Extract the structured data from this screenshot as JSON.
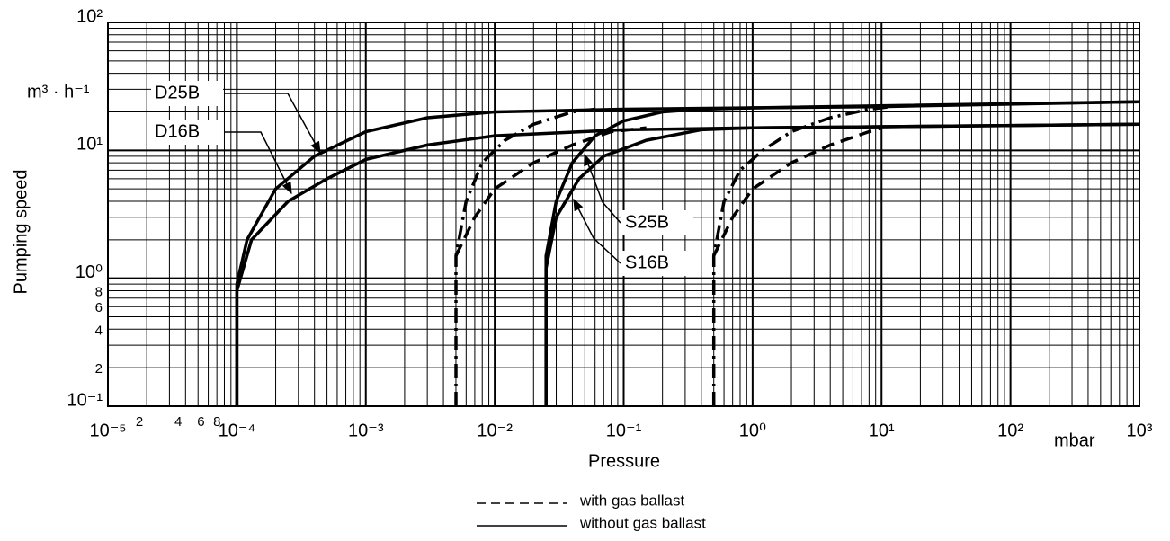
{
  "chart_data": {
    "type": "line",
    "xlabel": "Pressure",
    "ylabel": "Pumping speed",
    "x_unit": "mbar",
    "y_unit": "m³ · h⁻¹",
    "log_x": true,
    "log_y": true,
    "grid": true,
    "xlim": [
      1e-05,
      1000
    ],
    "ylim": [
      0.1,
      100
    ],
    "xticks": [
      {
        "value": 1e-05,
        "label": "10⁻⁵"
      },
      {
        "value": 2e-05,
        "label": "2"
      },
      {
        "value": 4e-05,
        "label": "4"
      },
      {
        "value": 6e-05,
        "label": "6"
      },
      {
        "value": 8e-05,
        "label": "8"
      },
      {
        "value": 0.0001,
        "label": "10⁻⁴"
      },
      {
        "value": 0.001,
        "label": "10⁻³"
      },
      {
        "value": 0.01,
        "label": "10⁻²"
      },
      {
        "value": 0.1,
        "label": "10⁻¹"
      },
      {
        "value": 1,
        "label": "10⁰"
      },
      {
        "value": 10,
        "label": "10¹"
      },
      {
        "value": 100,
        "label": "10²"
      },
      {
        "value": 1000,
        "label": "10³"
      }
    ],
    "yticks": [
      {
        "value": 0.1,
        "label": "10⁻¹"
      },
      {
        "value": 0.2,
        "label": "2"
      },
      {
        "value": 0.4,
        "label": "4"
      },
      {
        "value": 0.6,
        "label": "6"
      },
      {
        "value": 0.8,
        "label": "8"
      },
      {
        "value": 1,
        "label": "10⁰"
      },
      {
        "value": 10,
        "label": "10¹"
      },
      {
        "value": 100,
        "label": "10²"
      }
    ],
    "xgrid": [
      2e-05,
      3e-05,
      4e-05,
      5e-05,
      6e-05,
      7e-05,
      8e-05,
      9e-05,
      0.0001,
      0.0002,
      0.0003,
      0.0004,
      0.0005,
      0.0006,
      0.0007,
      0.0008,
      0.0009,
      0.001,
      0.002,
      0.003,
      0.004,
      0.005,
      0.006,
      0.007,
      0.008,
      0.009,
      0.01,
      0.02,
      0.03,
      0.04,
      0.05,
      0.06,
      0.07,
      0.08,
      0.09,
      0.1,
      0.2,
      0.3,
      0.4,
      0.5,
      0.6,
      0.7,
      0.8,
      0.9,
      1,
      2,
      3,
      4,
      5,
      6,
      7,
      8,
      9,
      10,
      20,
      30,
      40,
      50,
      60,
      70,
      80,
      90,
      100,
      200,
      300,
      400,
      500,
      600,
      700,
      800,
      900
    ],
    "ygrid": [
      0.2,
      0.3,
      0.4,
      0.5,
      0.6,
      0.7,
      0.8,
      0.9,
      1,
      2,
      3,
      4,
      5,
      6,
      7,
      8,
      9,
      10,
      20,
      30,
      40,
      50,
      60,
      70,
      80,
      90
    ],
    "series": [
      {
        "name": "D25B",
        "color": "#000000",
        "dash": "solid",
        "x": [
          0.0001,
          0.0001,
          0.00012,
          0.0002,
          0.0004,
          0.001,
          0.003,
          0.01,
          0.1,
          1,
          10,
          1000
        ],
        "values": [
          0.1,
          0.9,
          2,
          5,
          9,
          14,
          18,
          20,
          21,
          21.5,
          22,
          24
        ]
      },
      {
        "name": "D16B",
        "color": "#000000",
        "dash": "solid",
        "x": [
          0.0001,
          0.0001,
          0.00013,
          0.00025,
          0.0005,
          0.001,
          0.003,
          0.01,
          0.1,
          1,
          1000
        ],
        "values": [
          0.1,
          0.8,
          2,
          4,
          6,
          8.5,
          11,
          13,
          14.5,
          15,
          16
        ]
      },
      {
        "name": "S25B",
        "color": "#000000",
        "dash": "solid",
        "x": [
          0.025,
          0.025,
          0.03,
          0.04,
          0.06,
          0.1,
          0.2,
          0.4,
          1,
          1000
        ],
        "values": [
          0.1,
          1.5,
          4,
          8,
          13,
          17,
          20,
          21,
          21.5,
          24
        ]
      },
      {
        "name": "S16B",
        "color": "#000000",
        "dash": "solid",
        "x": [
          0.025,
          0.025,
          0.03,
          0.045,
          0.07,
          0.15,
          0.4,
          1,
          1000
        ],
        "values": [
          0.1,
          1.2,
          3,
          6,
          9,
          12,
          14.5,
          15,
          16
        ]
      },
      {
        "color": "#000000",
        "dash": "dashdot",
        "x": [
          0.005,
          0.005,
          0.006,
          0.008,
          0.012,
          0.02,
          0.04,
          0.06
        ],
        "values": [
          0.1,
          1.5,
          4,
          8,
          12,
          16,
          20,
          21
        ]
      },
      {
        "color": "#000000",
        "dash": "dashed",
        "x": [
          0.005,
          0.007,
          0.01,
          0.02,
          0.04,
          0.08,
          0.15
        ],
        "values": [
          1.5,
          3,
          5,
          8,
          11,
          14,
          15
        ]
      },
      {
        "color": "#000000",
        "dash": "dashdot",
        "x": [
          0.5,
          0.5,
          0.6,
          0.8,
          1.2,
          2,
          4,
          8,
          12
        ],
        "values": [
          0.1,
          1.5,
          4,
          7,
          10,
          14,
          18,
          21,
          22
        ]
      },
      {
        "color": "#000000",
        "dash": "dashed",
        "x": [
          0.5,
          0.7,
          1,
          2,
          4,
          8,
          10
        ],
        "values": [
          1.5,
          3,
          5,
          8,
          11,
          14,
          15
        ]
      }
    ],
    "legend": [
      {
        "label": "with gas ballast",
        "dash": "dashed"
      },
      {
        "label": "without gas ballast",
        "dash": "solid"
      }
    ]
  }
}
